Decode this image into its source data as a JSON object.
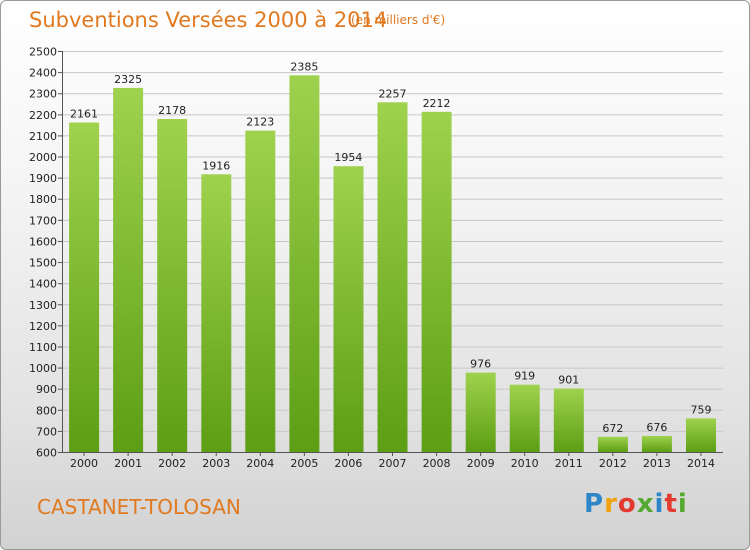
{
  "colors": {
    "accent": "#e0791f",
    "bar_top": "#9fd24e",
    "bar_bottom": "#5c9e14"
  },
  "logo": {
    "letters": [
      "P",
      "r",
      "o",
      "x",
      "i",
      "t",
      "i"
    ]
  },
  "chart_data": {
    "type": "bar",
    "title": "Subventions Versées 2000 à 2014",
    "subtitle": "(en milliers d'€)",
    "caption": "CASTANET-TOLOSAN",
    "categories": [
      "2000",
      "2001",
      "2002",
      "2003",
      "2004",
      "2005",
      "2006",
      "2007",
      "2008",
      "2009",
      "2010",
      "2011",
      "2012",
      "2013",
      "2014"
    ],
    "values": [
      2161,
      2325,
      2178,
      1916,
      2123,
      2385,
      1954,
      2257,
      2212,
      976,
      919,
      901,
      672,
      676,
      759
    ],
    "ylim": [
      600,
      2500
    ],
    "yticks": [
      600,
      700,
      800,
      900,
      1000,
      1100,
      1200,
      1300,
      1400,
      1500,
      1600,
      1700,
      1800,
      1900,
      2000,
      2100,
      2200,
      2300,
      2400,
      2500
    ],
    "grid": true,
    "legend": "none"
  }
}
